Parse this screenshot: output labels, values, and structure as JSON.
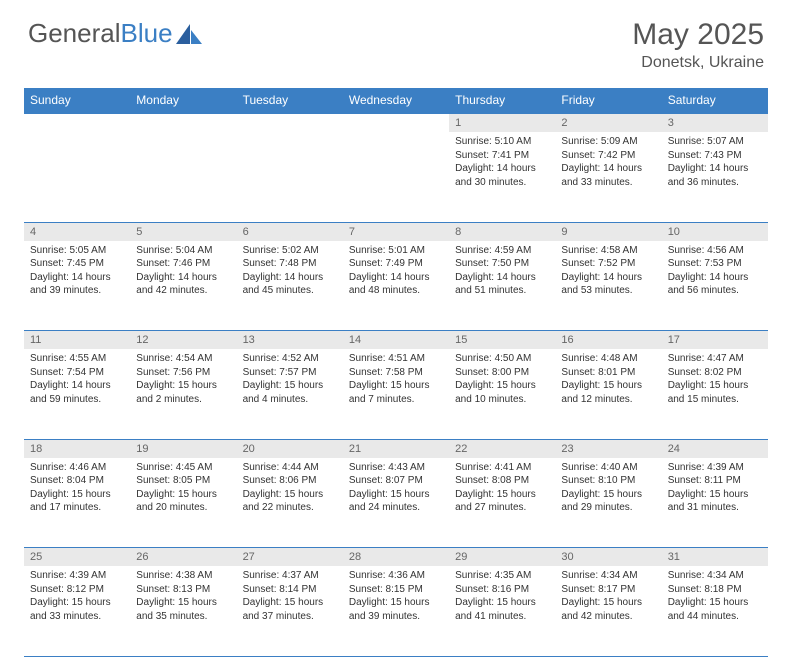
{
  "brand": {
    "part1": "General",
    "part2": "Blue"
  },
  "title": {
    "month": "May 2025",
    "location": "Donetsk, Ukraine"
  },
  "colors": {
    "accent": "#3b7fc4",
    "dayheader_bg": "#e9e9e9",
    "text": "#555"
  },
  "day_headers": [
    "Sunday",
    "Monday",
    "Tuesday",
    "Wednesday",
    "Thursday",
    "Friday",
    "Saturday"
  ],
  "weeks": [
    [
      null,
      null,
      null,
      null,
      {
        "n": "1",
        "sr": "5:10 AM",
        "ss": "7:41 PM",
        "dl": "14 hours and 30 minutes."
      },
      {
        "n": "2",
        "sr": "5:09 AM",
        "ss": "7:42 PM",
        "dl": "14 hours and 33 minutes."
      },
      {
        "n": "3",
        "sr": "5:07 AM",
        "ss": "7:43 PM",
        "dl": "14 hours and 36 minutes."
      }
    ],
    [
      {
        "n": "4",
        "sr": "5:05 AM",
        "ss": "7:45 PM",
        "dl": "14 hours and 39 minutes."
      },
      {
        "n": "5",
        "sr": "5:04 AM",
        "ss": "7:46 PM",
        "dl": "14 hours and 42 minutes."
      },
      {
        "n": "6",
        "sr": "5:02 AM",
        "ss": "7:48 PM",
        "dl": "14 hours and 45 minutes."
      },
      {
        "n": "7",
        "sr": "5:01 AM",
        "ss": "7:49 PM",
        "dl": "14 hours and 48 minutes."
      },
      {
        "n": "8",
        "sr": "4:59 AM",
        "ss": "7:50 PM",
        "dl": "14 hours and 51 minutes."
      },
      {
        "n": "9",
        "sr": "4:58 AM",
        "ss": "7:52 PM",
        "dl": "14 hours and 53 minutes."
      },
      {
        "n": "10",
        "sr": "4:56 AM",
        "ss": "7:53 PM",
        "dl": "14 hours and 56 minutes."
      }
    ],
    [
      {
        "n": "11",
        "sr": "4:55 AM",
        "ss": "7:54 PM",
        "dl": "14 hours and 59 minutes."
      },
      {
        "n": "12",
        "sr": "4:54 AM",
        "ss": "7:56 PM",
        "dl": "15 hours and 2 minutes."
      },
      {
        "n": "13",
        "sr": "4:52 AM",
        "ss": "7:57 PM",
        "dl": "15 hours and 4 minutes."
      },
      {
        "n": "14",
        "sr": "4:51 AM",
        "ss": "7:58 PM",
        "dl": "15 hours and 7 minutes."
      },
      {
        "n": "15",
        "sr": "4:50 AM",
        "ss": "8:00 PM",
        "dl": "15 hours and 10 minutes."
      },
      {
        "n": "16",
        "sr": "4:48 AM",
        "ss": "8:01 PM",
        "dl": "15 hours and 12 minutes."
      },
      {
        "n": "17",
        "sr": "4:47 AM",
        "ss": "8:02 PM",
        "dl": "15 hours and 15 minutes."
      }
    ],
    [
      {
        "n": "18",
        "sr": "4:46 AM",
        "ss": "8:04 PM",
        "dl": "15 hours and 17 minutes."
      },
      {
        "n": "19",
        "sr": "4:45 AM",
        "ss": "8:05 PM",
        "dl": "15 hours and 20 minutes."
      },
      {
        "n": "20",
        "sr": "4:44 AM",
        "ss": "8:06 PM",
        "dl": "15 hours and 22 minutes."
      },
      {
        "n": "21",
        "sr": "4:43 AM",
        "ss": "8:07 PM",
        "dl": "15 hours and 24 minutes."
      },
      {
        "n": "22",
        "sr": "4:41 AM",
        "ss": "8:08 PM",
        "dl": "15 hours and 27 minutes."
      },
      {
        "n": "23",
        "sr": "4:40 AM",
        "ss": "8:10 PM",
        "dl": "15 hours and 29 minutes."
      },
      {
        "n": "24",
        "sr": "4:39 AM",
        "ss": "8:11 PM",
        "dl": "15 hours and 31 minutes."
      }
    ],
    [
      {
        "n": "25",
        "sr": "4:39 AM",
        "ss": "8:12 PM",
        "dl": "15 hours and 33 minutes."
      },
      {
        "n": "26",
        "sr": "4:38 AM",
        "ss": "8:13 PM",
        "dl": "15 hours and 35 minutes."
      },
      {
        "n": "27",
        "sr": "4:37 AM",
        "ss": "8:14 PM",
        "dl": "15 hours and 37 minutes."
      },
      {
        "n": "28",
        "sr": "4:36 AM",
        "ss": "8:15 PM",
        "dl": "15 hours and 39 minutes."
      },
      {
        "n": "29",
        "sr": "4:35 AM",
        "ss": "8:16 PM",
        "dl": "15 hours and 41 minutes."
      },
      {
        "n": "30",
        "sr": "4:34 AM",
        "ss": "8:17 PM",
        "dl": "15 hours and 42 minutes."
      },
      {
        "n": "31",
        "sr": "4:34 AM",
        "ss": "8:18 PM",
        "dl": "15 hours and 44 minutes."
      }
    ]
  ]
}
